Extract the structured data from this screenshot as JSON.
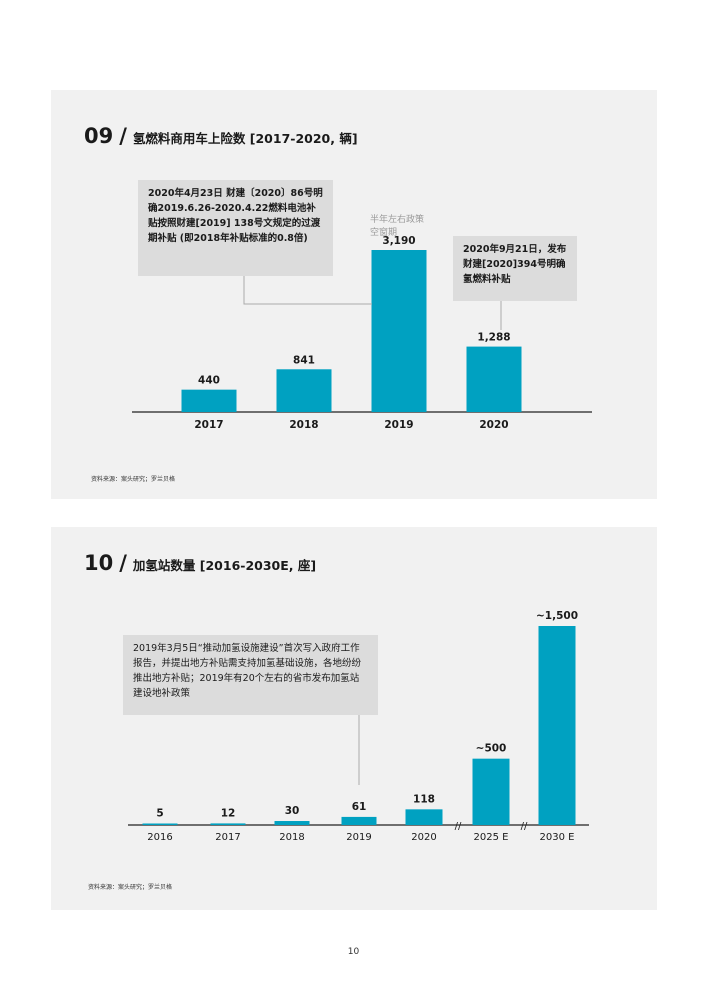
{
  "charts": [
    {
      "number": "09",
      "slash": "/",
      "title": "氢燃料商用车上险数 [2017-2020, 辆]",
      "source": "资料来源：案头研究；罗兰贝格",
      "callouts": [
        "2020年4月23日 财建〔2020〕86号明确2019.6.26-2020.4.22燃料电池补贴按照财建[2019] 138号文规定的过渡期补贴 (即2018年补贴标准的0.8倍)",
        "2020年9月21日，发布财建[2020]394号明确氢燃料补贴"
      ],
      "note": "半年左右政策空窗期"
    },
    {
      "number": "10",
      "slash": "/",
      "title": "加氢站数量 [2016-2030E, 座]",
      "source": "资料来源：案头研究；罗兰贝格",
      "callouts": [
        "2019年3月5日“推动加氢设施建设”首次写入政府工作报告，并提出地方补贴需支持加氢基础设施，各地纷纷推出地方补贴；2019年有20个左右的省市发布加氢站建设地补政策"
      ],
      "break_mark": "//"
    }
  ],
  "chart_data": [
    {
      "type": "bar",
      "title": "氢燃料商用车上险数 [2017-2020, 辆]",
      "categories": [
        "2017",
        "2018",
        "2019",
        "2020"
      ],
      "values": [
        440,
        841,
        3190,
        1288
      ],
      "value_labels": [
        "440",
        "841",
        "3,190",
        "1,288"
      ],
      "bar_color": "#00a1c1",
      "ylim": [
        0,
        3600
      ],
      "grid": false
    },
    {
      "type": "bar",
      "title": "加氢站数量 [2016-2030E, 座]",
      "categories": [
        "2016",
        "2017",
        "2018",
        "2019",
        "2020",
        "2025 E",
        "2030 E"
      ],
      "values": [
        5,
        12,
        30,
        61,
        118,
        500,
        1500
      ],
      "value_labels": [
        "5",
        "12",
        "30",
        "61",
        "118",
        "~500",
        "~1,500"
      ],
      "bar_color": "#00a1c1",
      "grid": false
    }
  ],
  "page_number": "10"
}
